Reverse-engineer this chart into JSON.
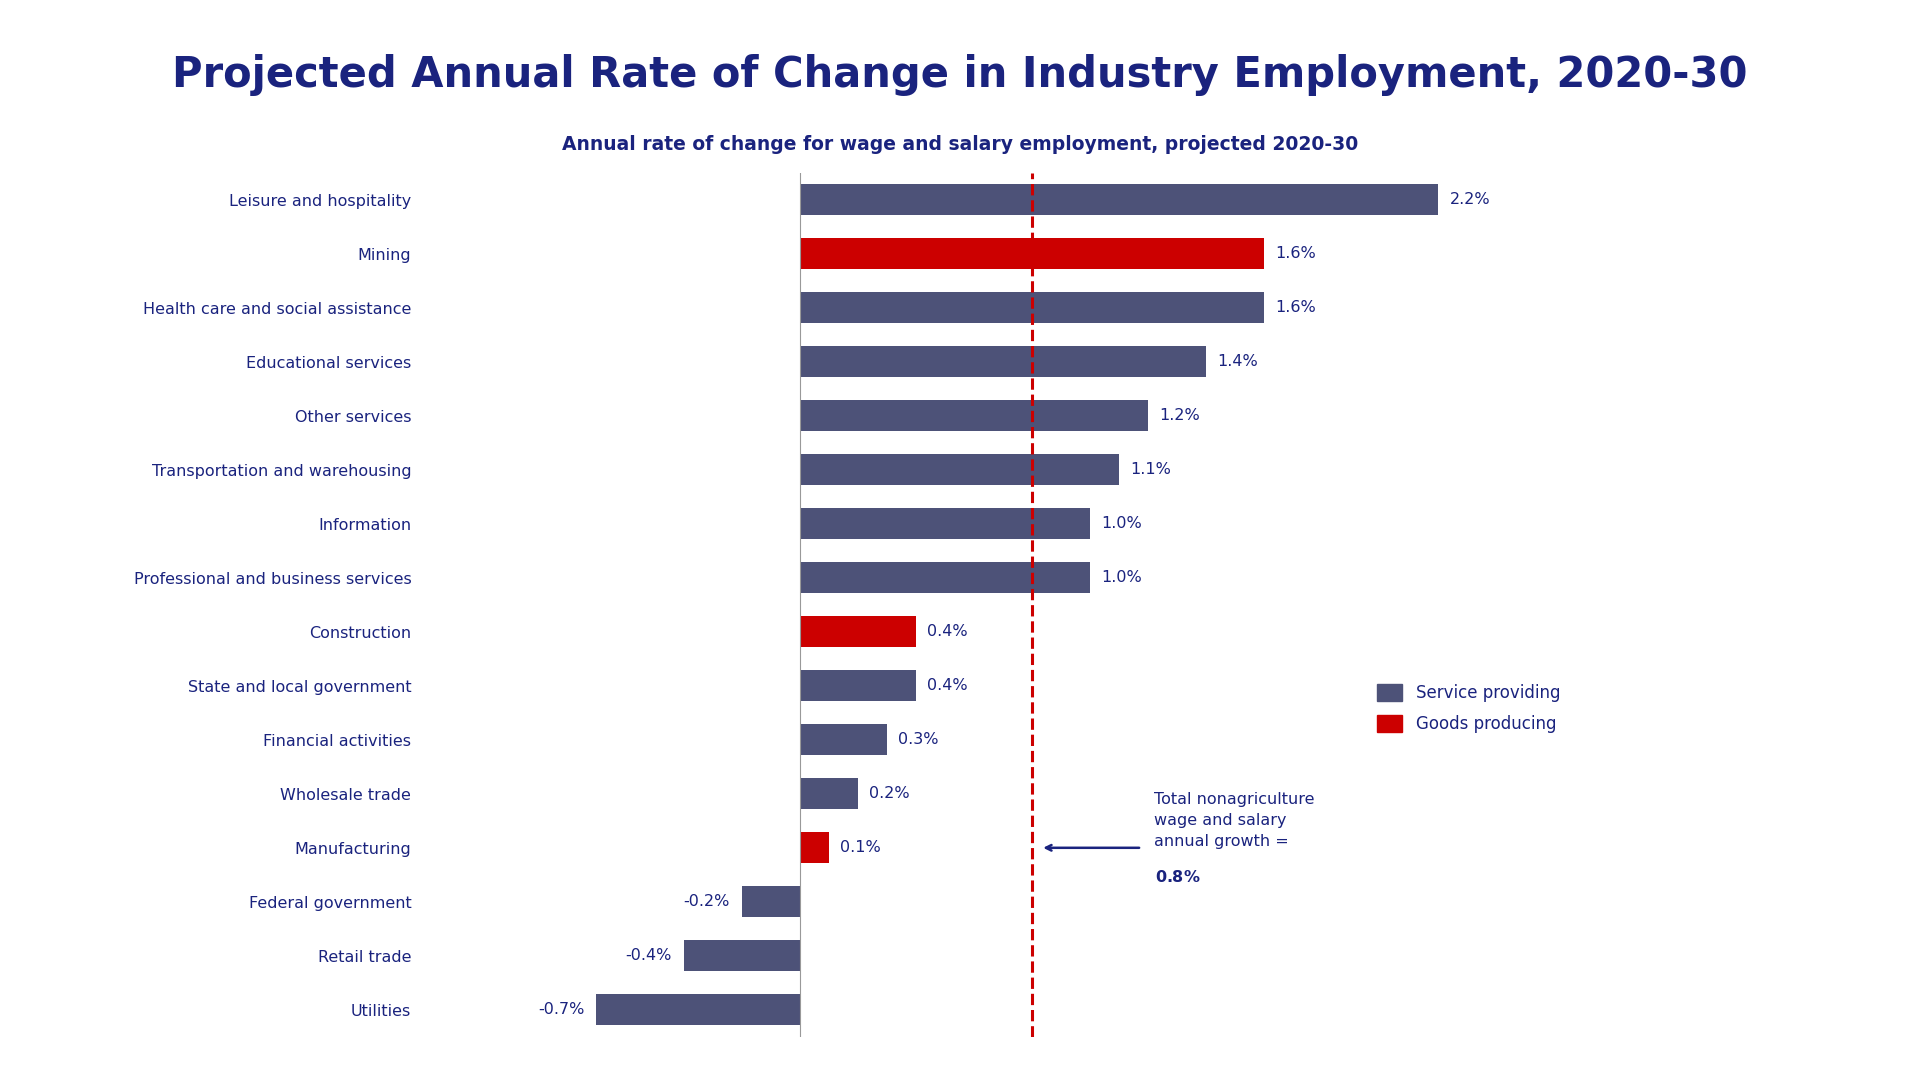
{
  "title": "Projected Annual Rate of Change in Industry Employment, 2020-30",
  "subtitle": "Annual rate of change for wage and salary employment, projected 2020-30",
  "categories": [
    "Leisure and hospitality",
    "Mining",
    "Health care and social assistance",
    "Educational services",
    "Other services",
    "Transportation and warehousing",
    "Information",
    "Professional and business services",
    "Construction",
    "State and local government",
    "Financial activities",
    "Wholesale trade",
    "Manufacturing",
    "Federal government",
    "Retail trade",
    "Utilities"
  ],
  "values": [
    2.2,
    1.6,
    1.6,
    1.4,
    1.2,
    1.1,
    1.0,
    1.0,
    0.4,
    0.4,
    0.3,
    0.2,
    0.1,
    -0.2,
    -0.4,
    -0.7
  ],
  "goods_producing": [
    "Mining",
    "Construction",
    "Manufacturing"
  ],
  "service_color": "#4d5278",
  "goods_color": "#cc0000",
  "title_color": "#1a237e",
  "subtitle_color": "#1a237e",
  "label_color": "#1a237e",
  "reference_line_value": 0.8,
  "reference_line_color": "#cc0000",
  "background_color": "#ffffff",
  "legend_service": "Service providing",
  "legend_goods": "Goods producing"
}
